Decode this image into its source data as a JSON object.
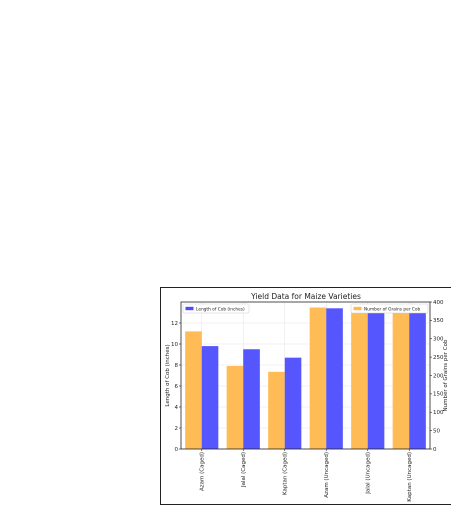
{
  "chart_data": {
    "type": "bar",
    "title": "Yield Data for Maize Varieties",
    "categories": [
      "Azam (Caged)",
      "Jalal (Caged)",
      "Kaptan (Caged)",
      "Azam (Uncaged)",
      "Jalal (Uncaged)",
      "Kaptan (Uncaged)"
    ],
    "ylabel_left": "Length of Cob (inches)",
    "ylabel_right": "Number of Grains per Cob",
    "ylim_left": [
      0,
      14
    ],
    "ylim_right": [
      0,
      400
    ],
    "yticks_left": [
      0,
      2,
      4,
      6,
      8,
      10,
      12
    ],
    "yticks_right": [
      0,
      50,
      100,
      150,
      200,
      250,
      300,
      350,
      400
    ],
    "series": [
      {
        "name": "Number of Grains per Cob",
        "axis": "right",
        "color": "#ffb84d",
        "values": [
          320,
          226,
          210,
          385,
          375,
          375
        ]
      },
      {
        "name": "Length of Cob (inches)",
        "axis": "left",
        "color": "#4d4dff",
        "values": [
          9.8,
          9.5,
          8.7,
          13.4,
          13.0,
          13.0
        ]
      }
    ],
    "legend": [
      "top-left",
      "top-right"
    ],
    "grid": true
  }
}
